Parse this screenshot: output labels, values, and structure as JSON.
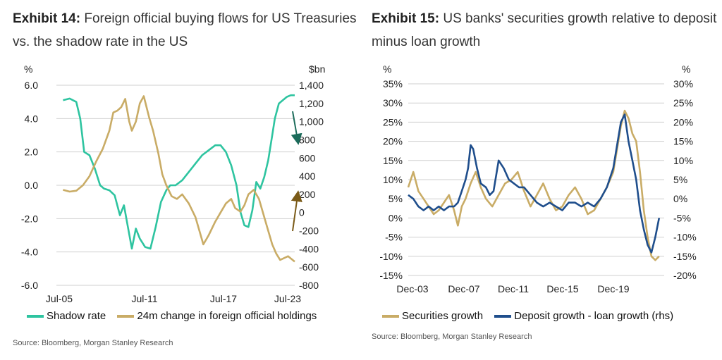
{
  "exhibit14": {
    "label": "Exhibit 14:",
    "title": "Foreign official buying flows for US Treasuries vs. the shadow rate in the US",
    "source": "Source: Bloomberg, Morgan Stanley Research"
  },
  "exhibit15": {
    "label": "Exhibit 15:",
    "title": "US banks' securities growth relative to deposit minus loan growth",
    "source": "Source: Bloomberg, Morgan Stanley Research"
  },
  "chart_data": [
    {
      "type": "line",
      "title": "Foreign official buying flows for US Treasuries vs. the shadow rate in the US",
      "y_left_unit": "%",
      "y_right_unit": "$bn",
      "ylim_left": [
        -6,
        6
      ],
      "ylim_right": [
        -800,
        1400
      ],
      "y_left_ticks": [
        "6.0",
        "4.0",
        "2.0",
        "0.0",
        "-2.0",
        "-4.0",
        "-6.0"
      ],
      "y_right_ticks": [
        "1,400",
        "1,200",
        "1,000",
        "800",
        "600",
        "400",
        "200",
        "0",
        "-200",
        "-400",
        "-600",
        "-800"
      ],
      "x_ticks": [
        "Jul-05",
        "Jul-11",
        "Jul-17",
        "Jul-23"
      ],
      "x_range": [
        2005.5,
        2023.5
      ],
      "legend_position": "bottom",
      "colors": {
        "shadow": "#2ec4a0",
        "holdings": "#c9ac66",
        "arrow_down": "#1b6b5a",
        "arrow_up": "#7a5a17"
      },
      "series": [
        {
          "name": "Shadow rate",
          "axis": "left",
          "x": [
            2006.0,
            2006.5,
            2007.0,
            2007.3,
            2007.6,
            2008.0,
            2008.4,
            2008.8,
            2009.1,
            2009.5,
            2009.9,
            2010.3,
            2010.6,
            2010.9,
            2011.2,
            2011.5,
            2011.8,
            2012.2,
            2012.6,
            2013.0,
            2013.4,
            2013.8,
            2014.1,
            2014.5,
            2015.0,
            2015.5,
            2016.0,
            2016.5,
            2017.0,
            2017.5,
            2017.9,
            2018.3,
            2018.7,
            2019.1,
            2019.4,
            2019.7,
            2020.0,
            2020.3,
            2020.6,
            2020.9,
            2021.2,
            2021.5,
            2021.8,
            2022.0,
            2022.3,
            2022.6,
            2022.9,
            2023.2,
            2023.5
          ],
          "y": [
            5.1,
            5.2,
            5.0,
            4.0,
            2.0,
            1.8,
            1.0,
            0.0,
            -0.2,
            -0.3,
            -0.6,
            -1.8,
            -1.2,
            -2.5,
            -3.8,
            -2.6,
            -3.2,
            -3.7,
            -3.8,
            -2.5,
            -1.0,
            -0.3,
            0.0,
            0.0,
            0.3,
            0.8,
            1.3,
            1.8,
            2.1,
            2.4,
            2.4,
            2.0,
            1.2,
            0.0,
            -1.6,
            -2.4,
            -2.5,
            -1.5,
            0.2,
            -0.2,
            0.5,
            1.5,
            3.0,
            4.0,
            4.9,
            5.1,
            5.3,
            5.4,
            5.4
          ]
        },
        {
          "name": "24m change in foreign official holdings",
          "axis": "right",
          "x": [
            2006.0,
            2006.5,
            2007.0,
            2007.5,
            2008.0,
            2008.5,
            2009.0,
            2009.5,
            2009.8,
            2010.1,
            2010.4,
            2010.7,
            2011.0,
            2011.2,
            2011.5,
            2011.8,
            2012.1,
            2012.5,
            2012.8,
            2013.2,
            2013.5,
            2013.8,
            2014.2,
            2014.6,
            2015.0,
            2015.5,
            2016.0,
            2016.3,
            2016.6,
            2017.0,
            2017.5,
            2017.9,
            2018.3,
            2018.7,
            2019.0,
            2019.4,
            2019.7,
            2020.0,
            2020.4,
            2020.8,
            2021.2,
            2021.5,
            2021.8,
            2022.1,
            2022.4,
            2022.7,
            2023.0,
            2023.5
          ],
          "y": [
            250,
            230,
            240,
            300,
            400,
            560,
            700,
            900,
            1100,
            1120,
            1160,
            1250,
            1000,
            900,
            1000,
            1200,
            1280,
            1050,
            900,
            650,
            420,
            300,
            180,
            150,
            200,
            100,
            -50,
            -200,
            -350,
            -250,
            -100,
            0,
            100,
            150,
            50,
            10,
            80,
            200,
            250,
            150,
            -50,
            -200,
            -350,
            -450,
            -520,
            -500,
            -480,
            -540
          ]
        }
      ]
    },
    {
      "type": "line",
      "title": "US banks' securities growth relative to deposit minus loan growth",
      "y_left_unit": "%",
      "y_right_unit": "%",
      "ylim_left": [
        -15,
        35
      ],
      "ylim_right": [
        -20,
        30
      ],
      "y_left_ticks": [
        "35%",
        "30%",
        "25%",
        "20%",
        "15%",
        "10%",
        "5%",
        "0%",
        "-5%",
        "-10%",
        "-15%"
      ],
      "y_right_ticks": [
        "30%",
        "25%",
        "20%",
        "15%",
        "10%",
        "5%",
        "0%",
        "-5%",
        "-10%",
        "-15%",
        "-20%"
      ],
      "x_ticks": [
        "Dec-03",
        "Dec-07",
        "Dec-11",
        "Dec-15",
        "Dec-19"
      ],
      "x_range": [
        2003.9,
        2024.0
      ],
      "legend_position": "bottom",
      "colors": {
        "securities": "#c9ac66",
        "deposit": "#1f4e8c"
      },
      "series": [
        {
          "name": "Securities growth",
          "axis": "left",
          "x": [
            2003.9,
            2004.3,
            2004.7,
            2005.1,
            2005.5,
            2005.9,
            2006.3,
            2006.7,
            2007.1,
            2007.5,
            2007.8,
            2008.1,
            2008.4,
            2008.8,
            2009.2,
            2009.6,
            2010.0,
            2010.5,
            2011.0,
            2011.5,
            2012.0,
            2012.5,
            2013.0,
            2013.5,
            2014.0,
            2014.5,
            2015.0,
            2015.5,
            2016.0,
            2016.5,
            2017.0,
            2017.5,
            2018.0,
            2018.5,
            2019.0,
            2019.5,
            2020.0,
            2020.3,
            2020.6,
            2020.9,
            2021.2,
            2021.5,
            2021.8,
            2022.1,
            2022.4,
            2022.7,
            2023.0,
            2023.3,
            2023.6
          ],
          "y": [
            8,
            12,
            7,
            5,
            3,
            1,
            2,
            4,
            6,
            2,
            -2,
            3,
            5,
            9,
            12,
            8,
            5,
            3,
            6,
            9,
            10,
            12,
            7,
            3,
            6,
            9,
            5,
            2,
            3,
            6,
            8,
            5,
            1,
            2,
            5,
            8,
            12,
            18,
            24,
            28,
            26,
            22,
            20,
            12,
            2,
            -5,
            -10,
            -11,
            -10
          ]
        },
        {
          "name": "Deposit growth - loan growth (rhs)",
          "axis": "right",
          "x": [
            2003.9,
            2004.3,
            2004.7,
            2005.1,
            2005.5,
            2005.9,
            2006.3,
            2006.7,
            2007.1,
            2007.5,
            2007.8,
            2008.1,
            2008.4,
            2008.6,
            2008.8,
            2009.0,
            2009.3,
            2009.6,
            2010.0,
            2010.3,
            2010.6,
            2011.0,
            2011.4,
            2011.8,
            2012.2,
            2012.6,
            2013.0,
            2013.5,
            2014.0,
            2014.5,
            2015.0,
            2015.5,
            2016.0,
            2016.5,
            2017.0,
            2017.5,
            2018.0,
            2018.5,
            2019.0,
            2019.5,
            2020.0,
            2020.3,
            2020.6,
            2020.9,
            2021.2,
            2021.5,
            2021.8,
            2022.1,
            2022.4,
            2022.7,
            2023.0,
            2023.3,
            2023.6
          ],
          "y": [
            1,
            0,
            -2,
            -3,
            -2,
            -3,
            -2,
            -3,
            -2,
            -2,
            -1,
            2,
            5,
            8,
            14,
            13,
            8,
            4,
            3,
            1,
            2,
            10,
            8,
            5,
            4,
            3,
            3,
            1,
            -1,
            -2,
            -1,
            -2,
            -3,
            -1,
            -1,
            -2,
            -1,
            -2,
            0,
            3,
            8,
            14,
            20,
            22,
            15,
            10,
            5,
            -3,
            -8,
            -12,
            -14,
            -10,
            -5
          ]
        }
      ]
    }
  ]
}
